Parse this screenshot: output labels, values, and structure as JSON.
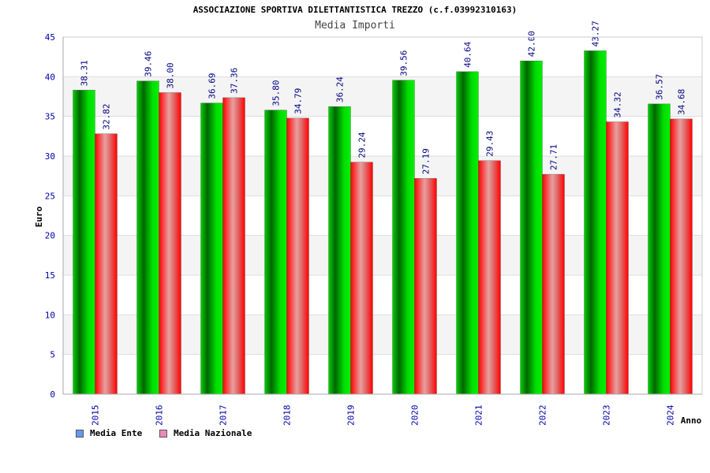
{
  "chart_data": {
    "type": "bar",
    "title": "ASSOCIAZIONE SPORTIVA DILETTANTISTICA TREZZO (c.f.03992310163)",
    "subtitle": "Media Importi",
    "xlabel": "Anno",
    "ylabel": "Euro",
    "ylim": [
      0,
      45
    ],
    "yticks": [
      0,
      5,
      10,
      15,
      20,
      25,
      30,
      35,
      40,
      45
    ],
    "categories": [
      "2015",
      "2016",
      "2017",
      "2018",
      "2019",
      "2020",
      "2021",
      "2022",
      "2023",
      "2024"
    ],
    "series": [
      {
        "name": "Media Ente",
        "color": "#00c000",
        "values": [
          38.31,
          39.46,
          36.69,
          35.8,
          36.24,
          39.56,
          40.64,
          42.0,
          43.27,
          36.57
        ],
        "labels": [
          "38.31",
          "39.46",
          "36.69",
          "35.80",
          "36.24",
          "39.56",
          "40.64",
          "42.00",
          "43.27",
          "36.57"
        ]
      },
      {
        "name": "Media Nazionale",
        "color": "#ff1a1a",
        "values": [
          32.82,
          38.0,
          37.36,
          34.79,
          29.24,
          27.19,
          29.43,
          27.71,
          34.32,
          34.68
        ],
        "labels": [
          "32.82",
          "38.00",
          "37.36",
          "34.79",
          "29.24",
          "27.19",
          "29.43",
          "27.71",
          "34.32",
          "34.68"
        ]
      }
    ],
    "legend": {
      "position": "bottom-left",
      "items": [
        {
          "label": "Media Ente",
          "color": "#6699ee"
        },
        {
          "label": "Media Nazionale",
          "color": "#ee88bb"
        }
      ]
    },
    "grid": true,
    "colors": {
      "band": "#f4f4f4",
      "axis_text": "#0000aa",
      "value_text": "#000080"
    }
  }
}
